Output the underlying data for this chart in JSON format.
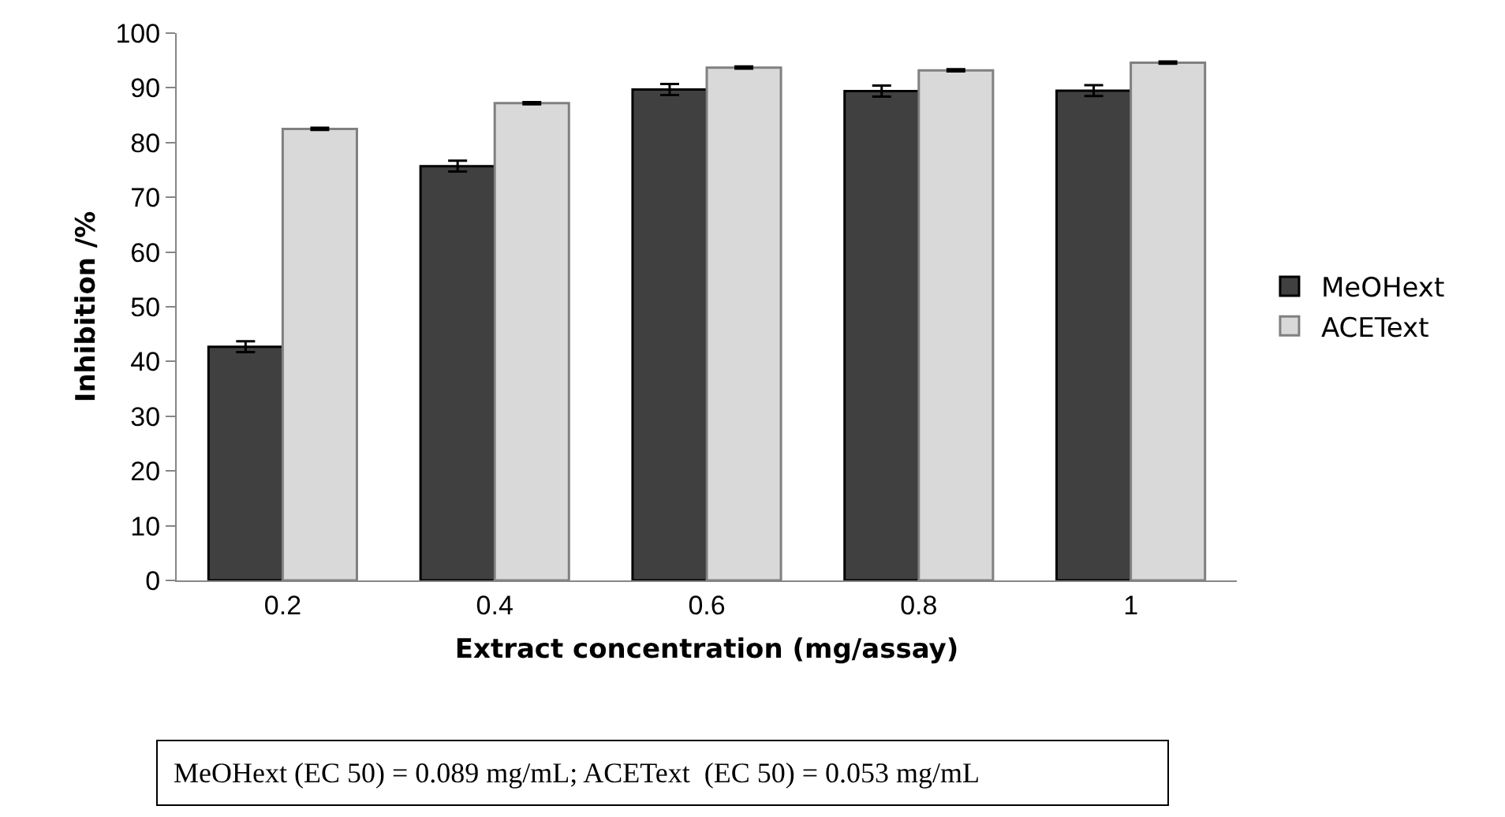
{
  "chart_data": {
    "type": "bar",
    "xlabel": "Extract concentration (mg/assay)",
    "ylabel": "Inhibition /%",
    "categories": [
      "0.2",
      "0.4",
      "0.6",
      "0.8",
      "1"
    ],
    "series": [
      {
        "name": "MeOHext",
        "color": "#404040",
        "values": [
          42.7,
          75.7,
          89.7,
          89.4,
          89.5
        ],
        "errors": [
          1,
          1,
          1,
          1,
          1
        ]
      },
      {
        "name": "ACEText",
        "color": "#d9d9d9",
        "values": [
          82.5,
          87.2,
          93.7,
          93.2,
          94.6
        ],
        "errors": [
          0.2,
          0.2,
          0.2,
          0.2,
          0.2
        ]
      }
    ],
    "ylim": [
      0,
      100
    ],
    "yticks": [
      0,
      10,
      20,
      30,
      40,
      50,
      60,
      70,
      80,
      90,
      100
    ],
    "legend": "right",
    "annotations": [
      "MeOHext (EC 50) = 0.089 mg/mL; ACEText  (EC 50) = 0.053 mg/mL"
    ]
  }
}
